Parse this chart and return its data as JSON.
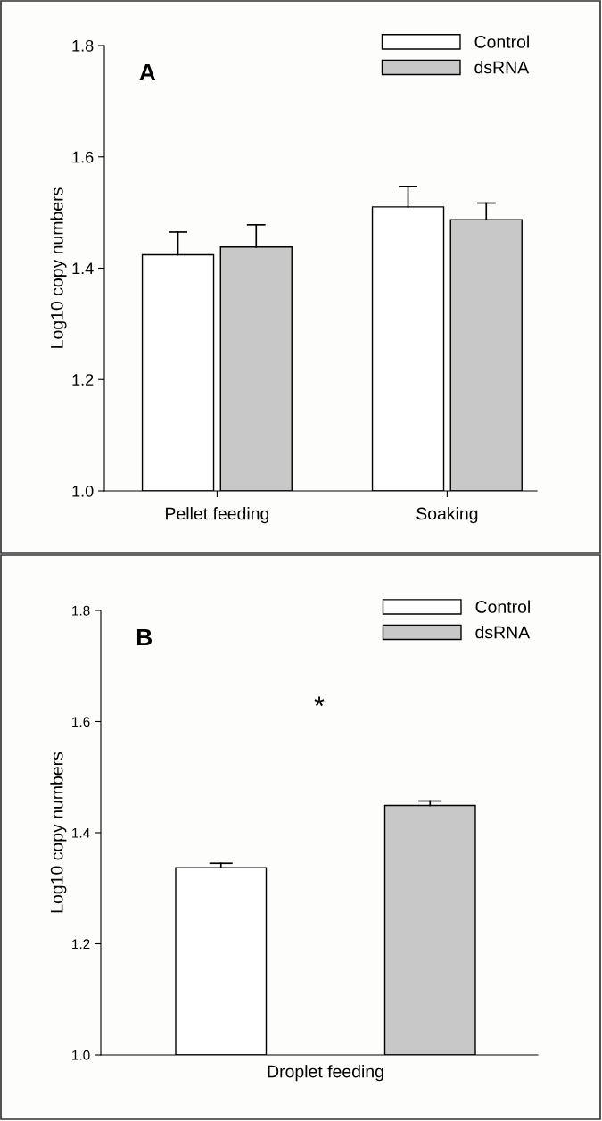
{
  "chart_data": [
    {
      "type": "bar",
      "ylabel": "Log10 copy numbers",
      "categories": [
        "Pellet feeding",
        "Soaking"
      ],
      "ylim": [
        1.0,
        1.8
      ],
      "yticks": [
        {
          "value": 1.0,
          "label": "1.0"
        },
        1.2,
        1.4,
        1.6,
        1.8
      ],
      "legend": "top right",
      "annotations": [
        "A"
      ],
      "series": [
        {
          "name": "Control",
          "color": "#ffffff",
          "values": [
            1.424,
            1.51
          ],
          "errors": [
            [
              1.424,
              1.465
            ],
            [
              1.51,
              1.547
            ]
          ]
        },
        {
          "name": "dsRNA",
          "color": "#c8c8c8",
          "values": [
            1.438,
            1.487
          ],
          "errors": [
            [
              1.438,
              1.478
            ],
            [
              1.487,
              1.517
            ]
          ]
        }
      ]
    },
    {
      "type": "bar",
      "ylabel": "Log10 copy numbers",
      "categories": [
        "Droplet feeding"
      ],
      "ylim": [
        1.0,
        1.8
      ],
      "yticks": [
        {
          "value": 1.0,
          "label": "1.0"
        },
        1.2,
        1.4,
        1.6,
        1.8
      ],
      "legend": "top right",
      "annotations": [
        "B",
        "*"
      ],
      "series": [
        {
          "name": "Control",
          "color": "#ffffff",
          "values": [
            1.337
          ],
          "errors": [
            [
              1.337,
              1.345
            ]
          ]
        },
        {
          "name": "dsRNA",
          "color": "#c8c8c8",
          "values": [
            1.449
          ],
          "errors": [
            [
              1.449,
              1.457
            ]
          ]
        }
      ]
    }
  ]
}
